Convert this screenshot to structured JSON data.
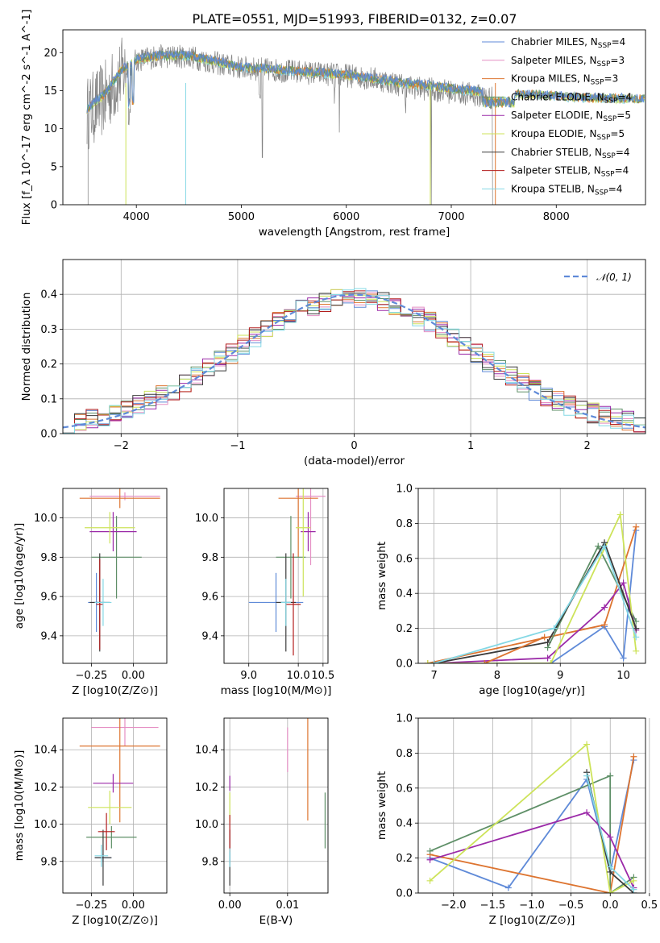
{
  "page": {
    "title": "PLATE=0551, MJD=51993, FIBERID=0132, z=0.07"
  },
  "colors": {
    "c1": "#5f8ad8",
    "c2": "#e58fc4",
    "c3": "#dd7430",
    "c4": "#5e8f67",
    "c5": "#9b2aa8",
    "c6": "#cde35a",
    "c7": "#3a3a3a",
    "c8": "#b31d1d",
    "c9": "#84d8e5",
    "model": "#5f8ad8",
    "spec": "#808080",
    "grid": "#b0b0b0"
  },
  "series_names": [
    "Chabrier MILES, N_SSP=4",
    "Salpeter MILES, N_SSP=3",
    "Kroupa MILES, N_SSP=3",
    "Chabrier ELODIE, N_SSP=4",
    "Salpeter ELODIE, N_SSP=5",
    "Kroupa ELODIE, N_SSP=5",
    "Chabrier STELIB, N_SSP=4",
    "Salpeter STELIB, N_SSP=4",
    "Kroupa STELIB, N_SSP=4"
  ],
  "chart_data": [
    {
      "id": "spectrum",
      "type": "line",
      "title": "PLATE=0551, MJD=51993, FIBERID=0132, z=0.07",
      "xlabel": "wavelength [Angstrom, rest frame]",
      "ylabel": "Flux [f_λ 10^-17 erg cm^-2 s^-1 A^-1]",
      "xlim": [
        3300,
        8850
      ],
      "ylim": [
        0,
        23
      ],
      "xticks": [
        4000,
        5000,
        6000,
        7000,
        8000
      ],
      "yticks": [
        0,
        5,
        10,
        15,
        20
      ],
      "legend": "top-right",
      "continuum": {
        "x": [
          3530,
          3700,
          3850,
          4000,
          4200,
          4500,
          4800,
          5000,
          5200,
          5500,
          5800,
          6000,
          6300,
          6600,
          6900,
          7200,
          7400
        ],
        "y": [
          12,
          14,
          17,
          19,
          19.5,
          19.5,
          18.5,
          18,
          17.8,
          17.5,
          17.2,
          17,
          16.5,
          15.5,
          15,
          14.5,
          14
        ]
      },
      "model_continuum": {
        "x": [
          3530,
          3700,
          3850,
          4000,
          4200,
          4500,
          5000,
          5500,
          6000,
          6500,
          7000,
          7400,
          7600,
          7800,
          8000,
          8200,
          8500,
          8800
        ],
        "y": [
          12.5,
          14.5,
          17.5,
          19,
          19.5,
          19.5,
          18,
          17.5,
          17,
          16,
          15.2,
          14.6,
          14.5,
          14.4,
          14.2,
          14.0,
          13.9,
          13.8
        ]
      }
    },
    {
      "id": "residuals",
      "type": "bar",
      "xlabel": "(data-model)/error",
      "ylabel": "Normed distribution",
      "xlim": [
        -2.5,
        2.5
      ],
      "ylim": [
        0,
        0.5
      ],
      "xticks": [
        -2,
        -1,
        0,
        1,
        2
      ],
      "yticks": [
        0.0,
        0.1,
        0.2,
        0.3,
        0.4
      ],
      "legend": "top-right",
      "legend_label": "𝒩(0, 1)",
      "bin_edges_start": -2.5,
      "bin_width": 0.1,
      "reference_curve": "gaussian mean 0 sigma 1"
    },
    {
      "id": "age-vs-Z",
      "type": "scatter",
      "xlabel": "Z [log10(Z/Z⊙)]",
      "ylabel": "age [log10(age/yr)]",
      "xlim": [
        -0.42,
        0.2
      ],
      "ylim": [
        9.26,
        10.15
      ],
      "xticks": [
        -0.25,
        0.0
      ],
      "yticks": [
        9.4,
        9.6,
        9.8,
        10.0
      ],
      "points": [
        {
          "s": 1,
          "x": -0.22,
          "y": 9.57,
          "xe": 0.05,
          "ye": 0.15
        },
        {
          "s": 2,
          "x": -0.05,
          "y": 10.11,
          "xe": 0.21,
          "ye": 0.02
        },
        {
          "s": 3,
          "x": -0.08,
          "y": 10.1,
          "xe": 0.24,
          "ye": 0.05
        },
        {
          "s": 4,
          "x": -0.1,
          "y": 9.8,
          "xe": 0.15,
          "ye": 0.21
        },
        {
          "s": 5,
          "x": -0.12,
          "y": 9.93,
          "xe": 0.14,
          "ye": 0.1
        },
        {
          "s": 6,
          "x": -0.14,
          "y": 9.95,
          "xe": 0.15,
          "ye": 0.08
        },
        {
          "s": 7,
          "x": -0.2,
          "y": 9.57,
          "xe": 0.06,
          "ye": 0.25
        },
        {
          "s": 8,
          "x": -0.2,
          "y": 9.56,
          "xe": 0.02,
          "ye": 0.23
        },
        {
          "s": 9,
          "x": -0.18,
          "y": 9.57,
          "xe": 0.05,
          "ye": 0.12
        }
      ]
    },
    {
      "id": "age-vs-mass",
      "type": "scatter",
      "xlabel": "mass [log10(M/M⊙)]",
      "ylabel": "",
      "xlim": [
        8.5,
        10.6
      ],
      "ylim": [
        9.26,
        10.15
      ],
      "xticks": [
        9.0,
        10.0,
        10.5
      ],
      "yticks": [
        9.4,
        9.6,
        9.8,
        10.0
      ],
      "points": [
        {
          "s": 1,
          "x": 9.55,
          "y": 9.57,
          "xe": 0.55,
          "ye": 0.15
        },
        {
          "s": 2,
          "x": 10.25,
          "y": 10.11,
          "xe": 0.3,
          "ye": 0.35
        },
        {
          "s": 3,
          "x": 10.0,
          "y": 10.1,
          "xe": 0.4,
          "ye": 0.3
        },
        {
          "s": 4,
          "x": 9.85,
          "y": 9.8,
          "xe": 0.3,
          "ye": 0.21
        },
        {
          "s": 5,
          "x": 10.2,
          "y": 9.93,
          "xe": 0.15,
          "ye": 0.1
        },
        {
          "s": 6,
          "x": 10.1,
          "y": 9.95,
          "xe": 0.15,
          "ye": 0.35
        },
        {
          "s": 7,
          "x": 9.75,
          "y": 9.57,
          "xe": 0.2,
          "ye": 0.25
        },
        {
          "s": 8,
          "x": 9.9,
          "y": 9.56,
          "xe": 0.15,
          "ye": 0.26
        },
        {
          "s": 9,
          "x": 9.75,
          "y": 9.57,
          "xe": 0.1,
          "ye": 0.12
        }
      ]
    },
    {
      "id": "weight-vs-age",
      "type": "line",
      "xlabel": "age [log10(age/yr)]",
      "ylabel": "mass weight",
      "xlim": [
        6.75,
        10.35
      ],
      "ylim": [
        0,
        1.0
      ],
      "xticks": [
        7,
        8,
        9,
        10
      ],
      "yticks": [
        0.0,
        0.2,
        0.4,
        0.6,
        0.8,
        1.0
      ],
      "series": [
        {
          "s": 1,
          "x": [
            8.85,
            9.7,
            10.0,
            10.2
          ],
          "y": [
            0.0,
            0.21,
            0.03,
            0.76
          ]
        },
        {
          "s": 3,
          "x": [
            6.9,
            9.7,
            10.2
          ],
          "y": [
            0.0,
            0.22,
            0.78
          ]
        },
        {
          "s": 4,
          "x": [
            8.8,
            9.6,
            10.2
          ],
          "y": [
            0.09,
            0.67,
            0.24
          ]
        },
        {
          "s": 5,
          "x": [
            7.0,
            8.8,
            9.7,
            10.0,
            10.2
          ],
          "y": [
            0.0,
            0.03,
            0.32,
            0.46,
            0.19
          ]
        },
        {
          "s": 6,
          "x": [
            6.9,
            8.85,
            9.95,
            10.2
          ],
          "y": [
            0.0,
            0.0,
            0.85,
            0.07
          ]
        },
        {
          "s": 7,
          "x": [
            7.0,
            8.8,
            9.7,
            10.2
          ],
          "y": [
            0.0,
            0.12,
            0.69,
            0.2
          ]
        },
        {
          "s": 9,
          "x": [
            7.0,
            8.9,
            9.7,
            10.2
          ],
          "y": [
            0.0,
            0.2,
            0.67,
            0.15
          ]
        },
        {
          "s": 3,
          "x": [
            7.8,
            8.75
          ],
          "y": [
            0.0,
            0.15
          ]
        }
      ]
    },
    {
      "id": "mass-vs-Z",
      "type": "scatter",
      "xlabel": "Z [log10(Z/Z⊙)]",
      "ylabel": "mass [log10(M/M⊙)]",
      "xlim": [
        -0.42,
        0.2
      ],
      "ylim": [
        9.63,
        10.57
      ],
      "xticks": [
        -0.25,
        0.0
      ],
      "yticks": [
        9.8,
        10.0,
        10.2,
        10.4
      ],
      "points": [
        {
          "s": 1,
          "x": -0.18,
          "y": 9.82,
          "xe": 0.05,
          "ye": 0.02
        },
        {
          "s": 2,
          "x": -0.05,
          "y": 10.52,
          "xe": 0.2,
          "ye": 0.1
        },
        {
          "s": 3,
          "x": -0.08,
          "y": 10.42,
          "xe": 0.24,
          "ye": 0.41
        },
        {
          "s": 4,
          "x": -0.13,
          "y": 9.93,
          "xe": 0.15,
          "ye": 0.06
        },
        {
          "s": 5,
          "x": -0.12,
          "y": 10.22,
          "xe": 0.12,
          "ye": 0.05
        },
        {
          "s": 6,
          "x": -0.14,
          "y": 10.09,
          "xe": 0.13,
          "ye": 0.09
        },
        {
          "s": 7,
          "x": -0.18,
          "y": 9.82,
          "xe": 0.05,
          "ye": 0.15
        },
        {
          "s": 8,
          "x": -0.16,
          "y": 9.96,
          "xe": 0.05,
          "ye": 0.1
        },
        {
          "s": 9,
          "x": -0.19,
          "y": 9.83,
          "xe": 0.04,
          "ye": 0.06
        }
      ]
    },
    {
      "id": "mass-vs-ebv",
      "type": "scatter",
      "xlabel": "E(B-V)",
      "ylabel": "",
      "xlim": [
        -0.001,
        0.017
      ],
      "ylim": [
        9.63,
        10.57
      ],
      "xticks": [
        0.0,
        0.01
      ],
      "xtick_labels": [
        "0.00",
        "0.01"
      ],
      "yticks": [
        9.8,
        10.0,
        10.2,
        10.4
      ],
      "points": [
        {
          "s": 1,
          "x": 0.0,
          "y": 9.82,
          "xe": 0.0,
          "ye": 0.03
        },
        {
          "s": 2,
          "x": 0.01,
          "y": 10.4,
          "xe": 0.0,
          "ye": 0.12
        },
        {
          "s": 3,
          "x": 0.0135,
          "y": 10.3,
          "xe": 0.0,
          "ye": 0.28
        },
        {
          "s": 4,
          "x": 0.0165,
          "y": 10.02,
          "xe": 0.0,
          "ye": 0.15
        },
        {
          "s": 5,
          "x": 0.0,
          "y": 10.22,
          "xe": 0.0,
          "ye": 0.04
        },
        {
          "s": 6,
          "x": 0.0,
          "y": 10.09,
          "xe": 0.0,
          "ye": 0.08
        },
        {
          "s": 7,
          "x": 0.0,
          "y": 9.82,
          "xe": 0.0,
          "ye": 0.15
        },
        {
          "s": 8,
          "x": 0.0,
          "y": 9.95,
          "xe": 0.0,
          "ye": 0.1
        },
        {
          "s": 9,
          "x": 0.0,
          "y": 9.82,
          "xe": 0.0,
          "ye": 0.05
        }
      ]
    },
    {
      "id": "weight-vs-Z",
      "type": "line",
      "xlabel": "Z [log10(Z/Z⊙)]",
      "ylabel": "mass weight",
      "xlim": [
        -2.45,
        0.45
      ],
      "ylim": [
        0,
        1.0
      ],
      "xticks": [
        -2.0,
        -1.5,
        -1.0,
        -0.5,
        0.0,
        0.5
      ],
      "yticks": [
        0.0,
        0.2,
        0.4,
        0.6,
        0.8,
        1.0
      ],
      "series": [
        {
          "s": 1,
          "x": [
            -2.3,
            -1.3,
            -0.3,
            0.0,
            0.3
          ],
          "y": [
            0.2,
            0.03,
            0.65,
            0.12,
            0.76
          ]
        },
        {
          "s": 3,
          "x": [
            -2.3,
            0.0,
            0.3
          ],
          "y": [
            0.22,
            0.0,
            0.78
          ]
        },
        {
          "s": 4,
          "x": [
            -2.3,
            0.0,
            0.0,
            0.3
          ],
          "y": [
            0.24,
            0.67,
            0.0,
            0.09
          ]
        },
        {
          "s": 5,
          "x": [
            -2.3,
            -0.3,
            0.0,
            0.3
          ],
          "y": [
            0.19,
            0.46,
            0.32,
            0.03
          ]
        },
        {
          "s": 6,
          "x": [
            -2.3,
            -0.3,
            0.0,
            0.3
          ],
          "y": [
            0.07,
            0.85,
            0.0,
            0.07
          ]
        },
        {
          "s": 7,
          "x": [
            -0.3,
            0.0,
            0.3
          ],
          "y": [
            0.69,
            0.12,
            0.0
          ]
        },
        {
          "s": 9,
          "x": [
            -0.3,
            0.0,
            0.3
          ],
          "y": [
            0.67,
            0.15,
            0.02
          ]
        }
      ]
    }
  ]
}
